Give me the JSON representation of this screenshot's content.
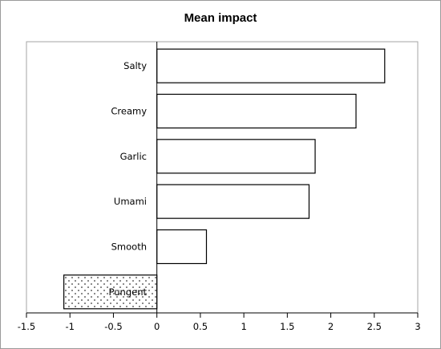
{
  "chart_data": {
    "type": "bar",
    "orientation": "horizontal",
    "title": "Mean impact",
    "xlabel": "",
    "ylabel": "",
    "categories": [
      "Salty",
      "Creamy",
      "Garlic",
      "Umami",
      "Smooth",
      "Pungent"
    ],
    "values": [
      2.62,
      2.29,
      1.82,
      1.75,
      0.57,
      -1.07
    ],
    "xlim": [
      -1.5,
      3
    ],
    "xticks": [
      "-1.5",
      "-1",
      "-0.5",
      "0",
      "0.5",
      "1",
      "1.5",
      "2",
      "2.5",
      "3"
    ],
    "grid": false,
    "legend": "none",
    "fills": {
      "positive": "#ffffff",
      "negative": "dotted"
    },
    "colors": {
      "bar_stroke": "#000000",
      "plot_border": "#a6a6a6"
    }
  }
}
